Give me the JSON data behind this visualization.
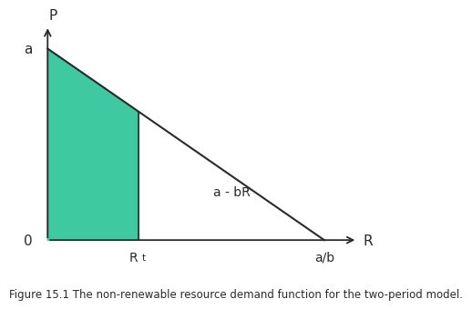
{
  "a": 1.0,
  "b": 1.0,
  "Rt": 0.33,
  "ab": 1.0,
  "fill_color": "#3EC9A0",
  "line_color": "#2a2a2a",
  "bg_color": "#ffffff",
  "label_P": "P",
  "label_R": "R",
  "label_a": "a",
  "label_0": "0",
  "label_Rt": "R",
  "label_Rt_sub": "t",
  "label_ab": "a/b",
  "label_demand": "a - bR",
  "caption": "Figure 15.1 The non-renewable resource demand function for the two-period model.",
  "caption_fontsize": 8.5,
  "axis_label_fontsize": 11,
  "annotation_fontsize": 10,
  "xlim": [
    -0.08,
    1.18
  ],
  "ylim": [
    -0.12,
    1.18
  ]
}
